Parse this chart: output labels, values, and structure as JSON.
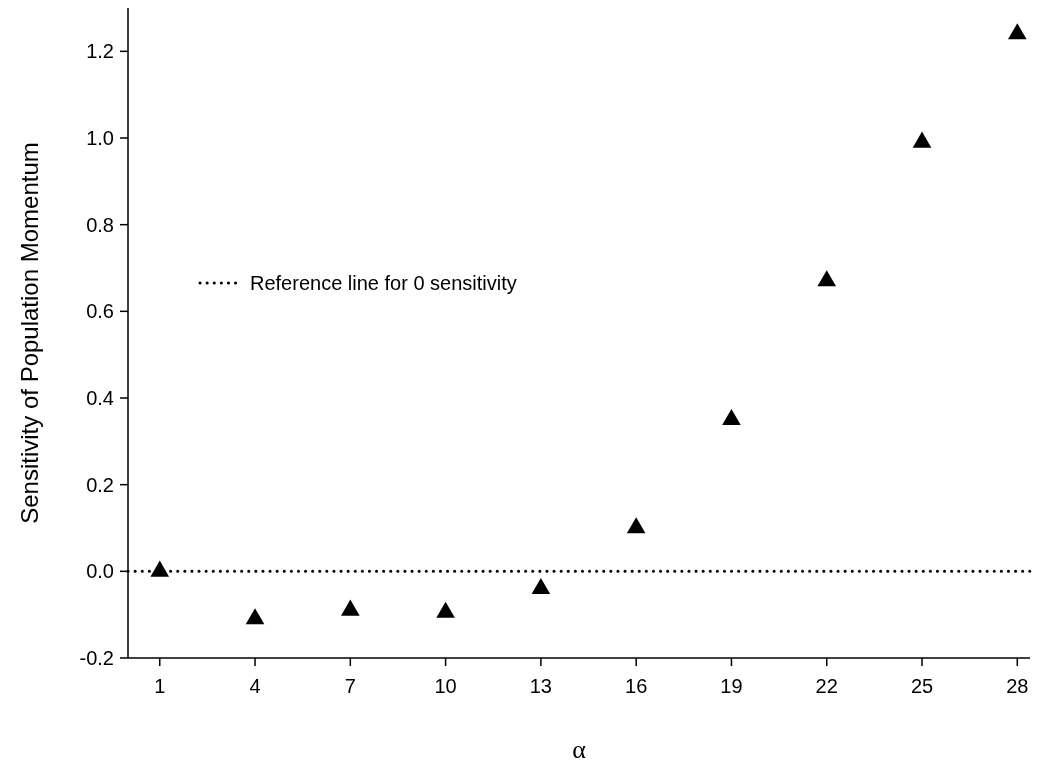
{
  "chart_data": {
    "type": "scatter",
    "xlabel": "α",
    "ylabel": "Sensitivity of Population Momentum",
    "x": [
      1,
      4,
      7,
      10,
      13,
      16,
      19,
      22,
      25,
      28
    ],
    "series": [
      {
        "color": "#000000",
        "values": [
          0.0,
          -0.11,
          -0.09,
          -0.095,
          -0.04,
          0.1,
          0.35,
          0.67,
          0.99,
          1.24
        ]
      }
    ],
    "xlim": [
      0,
      28.4
    ],
    "xticks": [
      1,
      4,
      7,
      10,
      13,
      16,
      19,
      22,
      25,
      28
    ],
    "ylim": [
      -0.2,
      1.3
    ],
    "yticks": [
      {
        "value": -0.2,
        "label": "-0.2"
      },
      {
        "value": 0,
        "label": "0.0"
      },
      {
        "value": 0.2,
        "label": "0.2"
      },
      {
        "value": 0.4,
        "label": "0.4"
      },
      {
        "value": 0.6,
        "label": "0.6"
      },
      {
        "value": 0.8,
        "label": "0.8"
      },
      {
        "value": 1,
        "label": "1.0"
      },
      {
        "value": 1.2,
        "label": "1.2"
      }
    ],
    "ref_lines": [
      {
        "axis": "y",
        "value": 0,
        "label": "Reference line for 0 sensitivity",
        "line_style": "dotted",
        "color": "#000000"
      }
    ],
    "marker": "triangle",
    "legend": "left",
    "grid": false
  }
}
